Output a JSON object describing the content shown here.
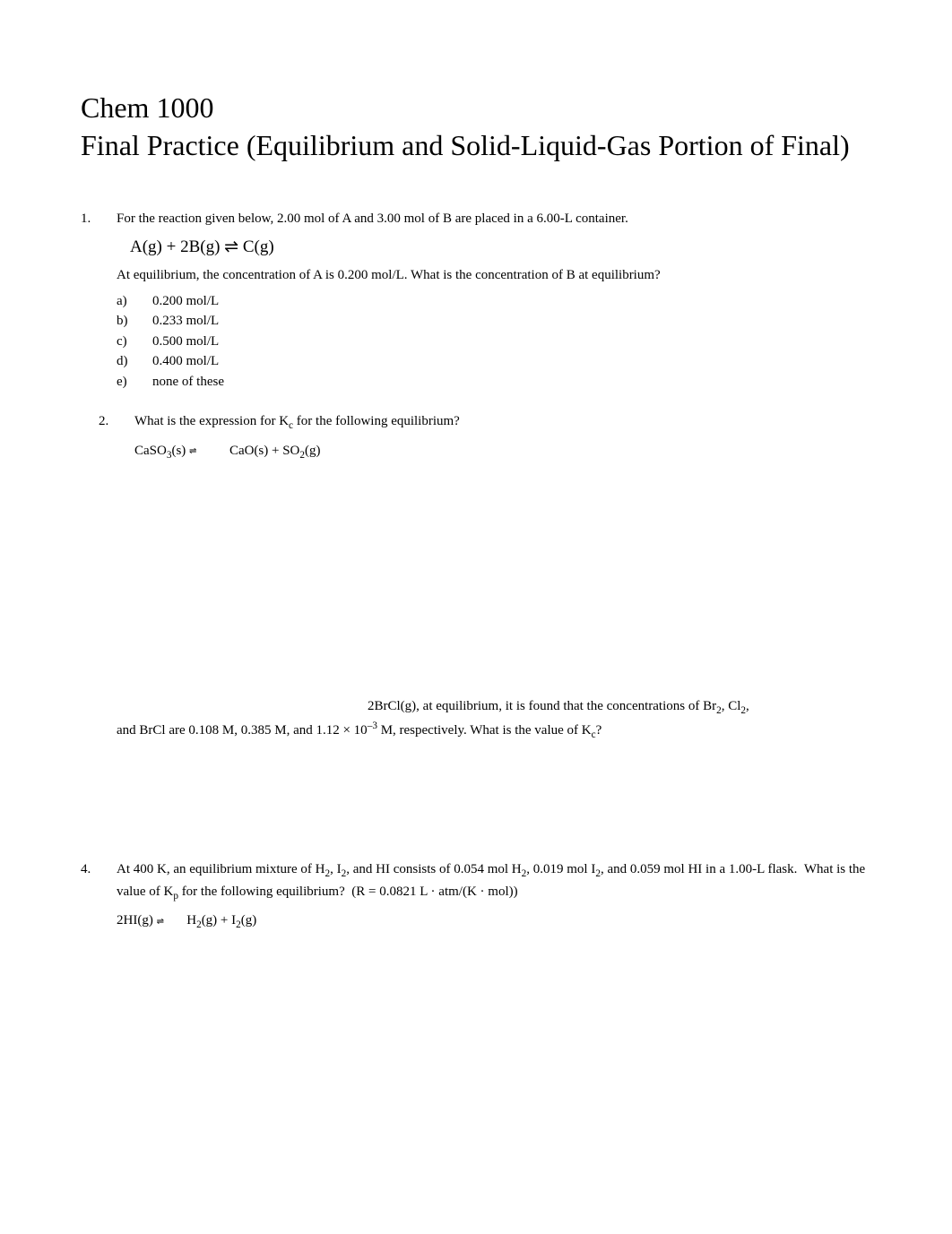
{
  "title_line1": "Chem 1000",
  "title_line2": "Final Practice (Equilibrium and Solid-Liquid-Gas Portion of Final)",
  "q1": {
    "num": "1.",
    "intro": "For the reaction given below, 2.00 mol of A and 3.00 mol of B are placed in a 6.00-L container.",
    "equation": "A(g) + 2B(g) ⇌      C(g)",
    "followup": "At equilibrium, the concentration of A is 0.200 mol/L. What is the concentration of B at equilibrium?",
    "choices": {
      "a": {
        "letter": "a)",
        "text": "0.200 mol/L"
      },
      "b": {
        "letter": "b)",
        "text": "0.233 mol/L"
      },
      "c": {
        "letter": "c)",
        "text": "0.500 mol/L"
      },
      "d": {
        "letter": "d)",
        "text": "0.400 mol/L"
      },
      "e": {
        "letter": "e)",
        "text": "none of these"
      }
    }
  },
  "q2": {
    "num": "2.",
    "intro": "What is the expression for Kc for the following equilibrium?",
    "equation": "CaSO₃(s) ⇌          CaO(s) + SO₂(g)"
  },
  "q3": {
    "line1": " 2BrCl(g), at equilibrium, it is found that the concentrations of Br₂, Cl₂,",
    "line2": "and BrCl are 0.108 M, 0.385 M, and 1.12 × 10⁻³ M, respectively. What is the value of Kc?"
  },
  "q4": {
    "num": "4.",
    "intro": "At 400 K, an equilibrium mixture of H₂, I₂, and HI consists of 0.054 mol H₂, 0.019 mol I₂, and 0.059 mol HI in a 1.00-L flask.  What is the value of Kp for the following equilibrium?  (R = 0.0821 L · atm/(K · mol))",
    "equation": "2HI(g) ⇌       H₂(g) + I₂(g)"
  },
  "colors": {
    "background": "#ffffff",
    "text": "#000000"
  },
  "typography": {
    "title_fontsize": 32,
    "body_fontsize": 15,
    "equation_fontsize": 19,
    "font_family": "Times New Roman, serif"
  }
}
